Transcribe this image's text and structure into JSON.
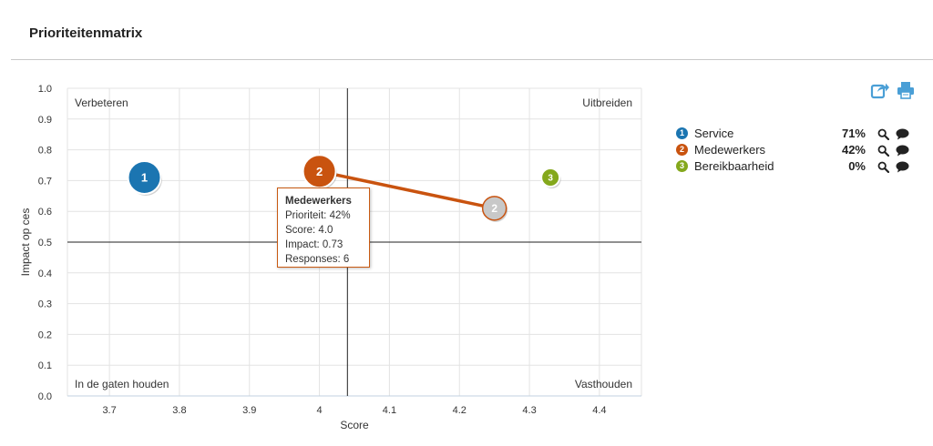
{
  "page": {
    "title": "Prioriteitenmatrix"
  },
  "toolbar": {
    "share_icon": "share-icon",
    "print_icon": "print-icon",
    "icon_color": "#4a9fd6"
  },
  "legend": {
    "items": [
      {
        "number": "1",
        "name": "Service",
        "percent": "71%",
        "color": "#1b75b1"
      },
      {
        "number": "2",
        "name": "Medewerkers",
        "percent": "42%",
        "color": "#c9530f"
      },
      {
        "number": "3",
        "name": "Bereikbaarheid",
        "percent": "0%",
        "color": "#84a81c"
      }
    ]
  },
  "tooltip": {
    "title": "Medewerkers",
    "line_priority": "Prioriteit: 42%",
    "line_score": "Score: 4.0",
    "line_impact": "Impact: 0.73",
    "line_responses": "Responses: 6"
  },
  "chart_data": {
    "type": "scatter",
    "title": "",
    "xlabel": "Score",
    "ylabel": "Impact op ces",
    "xlim": [
      3.64,
      4.46
    ],
    "ylim": [
      0,
      1
    ],
    "x_ticks": [
      "3.7",
      "3.8",
      "3.9",
      "4",
      "4.1",
      "4.2",
      "4.3",
      "4.4"
    ],
    "x_tick_values": [
      3.7,
      3.8,
      3.9,
      4.0,
      4.1,
      4.2,
      4.3,
      4.4
    ],
    "y_ticks": [
      "0.0",
      "0.1",
      "0.2",
      "0.3",
      "0.4",
      "0.5",
      "0.6",
      "0.7",
      "0.8",
      "0.9",
      "1.0"
    ],
    "y_tick_values": [
      0,
      0.1,
      0.2,
      0.3,
      0.4,
      0.5,
      0.6,
      0.7,
      0.8,
      0.9,
      1.0
    ],
    "grid": true,
    "divider_x": 4.04,
    "divider_y": 0.5,
    "quadrants": {
      "top_left": "Verbeteren",
      "top_right": "Uitbreiden",
      "bottom_left": "In de gaten houden",
      "bottom_right": "Vasthouden"
    },
    "points": [
      {
        "label": "1",
        "name": "Service",
        "x": 3.75,
        "y": 0.71,
        "size": "large",
        "color": "#1b75b1"
      },
      {
        "label": "2",
        "name": "Medewerkers",
        "x": 4.0,
        "y": 0.73,
        "size": "large",
        "color": "#c9530f"
      },
      {
        "label": "3",
        "name": "Bereikbaarheid",
        "x": 4.33,
        "y": 0.71,
        "size": "small",
        "color": "#84a81c"
      },
      {
        "label": "2",
        "name": "Medewerkers",
        "x": 4.25,
        "y": 0.61,
        "size": "medium",
        "color": "#c8c8c8"
      }
    ],
    "connector": {
      "from": [
        4.0,
        0.73
      ],
      "to": [
        4.25,
        0.61
      ],
      "color": "#c9530f"
    },
    "legend_position": "right"
  }
}
